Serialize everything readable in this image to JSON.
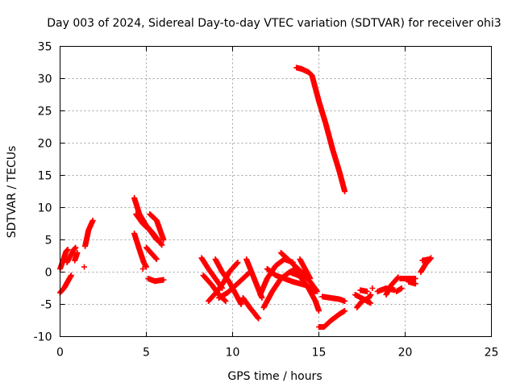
{
  "chart_data": {
    "type": "scatter",
    "title": "Day 003 of 2024, Sidereal Day-to-day VTEC variation (SDTVAR) for receiver ohi3",
    "xlabel": "GPS time / hours",
    "ylabel": "SDTVAR / TECUs",
    "xlim": [
      0,
      25
    ],
    "ylim": [
      -10,
      35
    ],
    "xticks": [
      0,
      5,
      10,
      15,
      20,
      25
    ],
    "yticks": [
      -10,
      -5,
      0,
      5,
      10,
      15,
      20,
      25,
      30,
      35
    ],
    "grid": true,
    "marker": "+",
    "color": "#ff0000",
    "tracks": [
      {
        "name": "t01",
        "points": [
          [
            0.0,
            -3.2
          ],
          [
            0.25,
            -2.4
          ],
          [
            0.5,
            -1.2
          ],
          [
            0.65,
            -0.5
          ]
        ]
      },
      {
        "name": "t02",
        "points": [
          [
            0.0,
            0.5
          ],
          [
            0.2,
            2.0
          ],
          [
            0.35,
            3.2
          ],
          [
            0.45,
            3.5
          ]
        ]
      },
      {
        "name": "t03",
        "points": [
          [
            0.4,
            1.5
          ],
          [
            0.6,
            2.5
          ],
          [
            0.8,
            3.5
          ],
          [
            0.9,
            3.8
          ]
        ]
      },
      {
        "name": "t04",
        "points": [
          [
            0.85,
            1.8
          ],
          [
            1.0,
            3.0
          ]
        ]
      },
      {
        "name": "t05",
        "points": [
          [
            1.45,
            4.0
          ],
          [
            1.65,
            6.5
          ],
          [
            1.9,
            8.0
          ]
        ]
      },
      {
        "name": "t06",
        "points": [
          [
            1.4,
            0.8
          ]
        ]
      },
      {
        "name": "t07",
        "points": [
          [
            4.3,
            11.5
          ],
          [
            4.6,
            9.0
          ],
          [
            5.0,
            7.2
          ],
          [
            5.4,
            6.0
          ],
          [
            5.9,
            4.2
          ]
        ]
      },
      {
        "name": "t08",
        "points": [
          [
            4.3,
            6.0
          ],
          [
            4.6,
            3.5
          ],
          [
            4.85,
            1.5
          ],
          [
            5.0,
            0.8
          ]
        ]
      },
      {
        "name": "t09",
        "points": [
          [
            4.4,
            9.0
          ],
          [
            4.8,
            7.5
          ],
          [
            5.2,
            6.5
          ],
          [
            5.6,
            5.0
          ]
        ]
      },
      {
        "name": "t10",
        "points": [
          [
            5.2,
            9.0
          ],
          [
            5.6,
            8.0
          ],
          [
            6.0,
            5.0
          ]
        ]
      },
      {
        "name": "t11",
        "points": [
          [
            5.0,
            3.8
          ],
          [
            5.4,
            2.6
          ],
          [
            5.6,
            2.0
          ]
        ]
      },
      {
        "name": "t12",
        "points": [
          [
            5.1,
            -1.0
          ],
          [
            5.5,
            -1.4
          ],
          [
            6.0,
            -1.2
          ]
        ]
      },
      {
        "name": "t13",
        "points": [
          [
            4.8,
            0.5
          ]
        ]
      },
      {
        "name": "t14",
        "points": [
          [
            8.2,
            2.2
          ],
          [
            8.6,
            0.5
          ],
          [
            9.0,
            -1.0
          ],
          [
            9.4,
            -2.5
          ]
        ]
      },
      {
        "name": "t15",
        "points": [
          [
            8.3,
            -0.5
          ],
          [
            8.8,
            -2.0
          ],
          [
            9.2,
            -3.5
          ],
          [
            9.6,
            -4.5
          ]
        ]
      },
      {
        "name": "t16",
        "points": [
          [
            8.6,
            -4.5
          ],
          [
            9.1,
            -3.0
          ],
          [
            9.5,
            -1.5
          ],
          [
            9.8,
            0.0
          ],
          [
            10.3,
            1.5
          ]
        ]
      },
      {
        "name": "t17",
        "points": [
          [
            9.0,
            2.0
          ],
          [
            9.4,
            0.0
          ],
          [
            9.8,
            -1.5
          ],
          [
            10.2,
            -3.5
          ],
          [
            10.5,
            -5.0
          ]
        ]
      },
      {
        "name": "t18",
        "points": [
          [
            9.2,
            -4.0
          ],
          [
            9.7,
            -3.2
          ],
          [
            10.2,
            -2.0
          ],
          [
            10.6,
            -1.0
          ],
          [
            11.0,
            0.0
          ]
        ]
      },
      {
        "name": "t19",
        "points": [
          [
            10.8,
            2.0
          ],
          [
            11.1,
            0.0
          ],
          [
            11.4,
            -2.0
          ],
          [
            11.7,
            -4.0
          ]
        ]
      },
      {
        "name": "t20",
        "points": [
          [
            10.6,
            -4.0
          ],
          [
            11.0,
            -5.5
          ],
          [
            11.3,
            -6.5
          ],
          [
            11.5,
            -7.2
          ]
        ]
      },
      {
        "name": "t21",
        "points": [
          [
            11.6,
            -3.5
          ],
          [
            12.0,
            -1.0
          ],
          [
            12.5,
            1.0
          ],
          [
            13.0,
            2.0
          ],
          [
            13.5,
            1.5
          ]
        ]
      },
      {
        "name": "t22",
        "points": [
          [
            11.8,
            -5.5
          ],
          [
            12.3,
            -3.0
          ],
          [
            12.8,
            -1.0
          ],
          [
            13.3,
            0.0
          ],
          [
            13.8,
            -0.5
          ]
        ]
      },
      {
        "name": "t23",
        "points": [
          [
            12.0,
            0.5
          ],
          [
            12.5,
            -0.5
          ],
          [
            13.0,
            -1.0
          ],
          [
            13.5,
            -1.5
          ],
          [
            14.2,
            -2.0
          ],
          [
            14.8,
            -3.0
          ]
        ]
      },
      {
        "name": "t24",
        "points": [
          [
            12.8,
            3.0
          ],
          [
            13.4,
            1.5
          ],
          [
            14.0,
            0.0
          ],
          [
            14.5,
            -1.5
          ],
          [
            14.9,
            -3.0
          ]
        ]
      },
      {
        "name": "t25",
        "points": [
          [
            13.5,
            0.5
          ],
          [
            14.0,
            -1.0
          ],
          [
            14.4,
            -2.5
          ],
          [
            14.8,
            -4.5
          ],
          [
            15.0,
            -6.0
          ]
        ]
      },
      {
        "name": "t26",
        "points": [
          [
            13.9,
            2.0
          ],
          [
            14.2,
            0.5
          ],
          [
            14.5,
            -1.0
          ]
        ]
      },
      {
        "name": "t27",
        "points": [
          [
            15.0,
            -8.5
          ],
          [
            15.3,
            -8.5
          ],
          [
            15.7,
            -7.5
          ],
          [
            16.2,
            -6.5
          ],
          [
            16.5,
            -6.0
          ]
        ]
      },
      {
        "name": "t28",
        "points": [
          [
            15.2,
            -3.8
          ],
          [
            15.7,
            -4.0
          ],
          [
            16.2,
            -4.2
          ],
          [
            16.5,
            -4.5
          ]
        ]
      },
      {
        "name": "t29",
        "points": [
          [
            13.7,
            31.7
          ],
          [
            14.0,
            31.5
          ],
          [
            14.4,
            31.0
          ],
          [
            14.6,
            30.5
          ],
          [
            15.0,
            26.5
          ],
          [
            15.4,
            23.0
          ],
          [
            15.8,
            19.0
          ],
          [
            16.2,
            15.5
          ],
          [
            16.5,
            12.5
          ]
        ]
      },
      {
        "name": "t30",
        "points": [
          [
            17.2,
            -5.5
          ],
          [
            17.5,
            -4.5
          ],
          [
            17.9,
            -4.0
          ],
          [
            18.0,
            -3.5
          ]
        ]
      },
      {
        "name": "t31",
        "points": [
          [
            17.1,
            -3.5
          ],
          [
            17.6,
            -4.2
          ],
          [
            18.0,
            -4.8
          ]
        ]
      },
      {
        "name": "t32",
        "points": [
          [
            17.4,
            -2.8
          ],
          [
            17.8,
            -3.0
          ]
        ]
      },
      {
        "name": "t33",
        "points": [
          [
            18.4,
            -3.0
          ],
          [
            18.9,
            -2.5
          ],
          [
            19.4,
            -2.8
          ]
        ]
      },
      {
        "name": "t34",
        "points": [
          [
            18.9,
            -3.5
          ],
          [
            19.2,
            -2.0
          ],
          [
            19.6,
            -0.8
          ]
        ]
      },
      {
        "name": "t35",
        "points": [
          [
            19.5,
            -3.0
          ],
          [
            19.8,
            -2.5
          ]
        ]
      },
      {
        "name": "t36",
        "points": [
          [
            19.7,
            -1.0
          ],
          [
            20.2,
            -1.0
          ],
          [
            20.6,
            -1.0
          ]
        ]
      },
      {
        "name": "t37",
        "points": [
          [
            20.2,
            -1.5
          ],
          [
            20.6,
            -1.8
          ]
        ]
      },
      {
        "name": "t38",
        "points": [
          [
            20.9,
            0.0
          ],
          [
            21.2,
            1.3
          ],
          [
            21.5,
            2.2
          ]
        ]
      },
      {
        "name": "t39",
        "points": [
          [
            21.0,
            1.8
          ],
          [
            21.4,
            2.0
          ]
        ]
      },
      {
        "name": "t40",
        "points": [
          [
            18.1,
            -2.5
          ]
        ]
      }
    ]
  }
}
